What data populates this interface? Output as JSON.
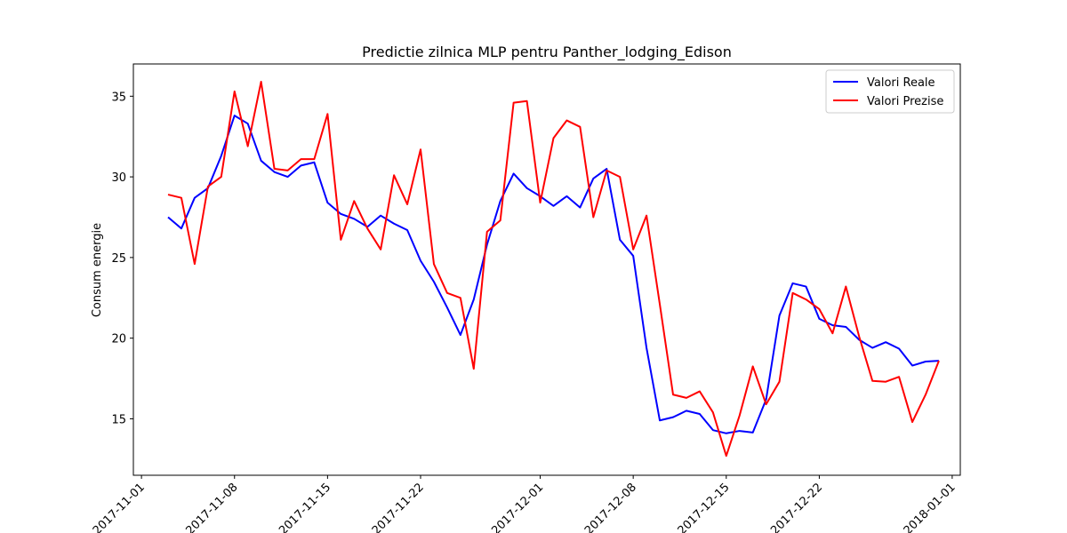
{
  "chart_data": {
    "type": "line",
    "title": "Predictie zilnica MLP pentru Panther_lodging_Edison",
    "xlabel": "",
    "ylabel": "Consum energie",
    "x_start": "2017-11-03",
    "xlim": [
      "2017-11-01",
      "2018-01-01"
    ],
    "ylim": [
      11.5,
      37.0
    ],
    "x_ticks": [
      "2017-11-01",
      "2017-11-08",
      "2017-11-15",
      "2017-11-22",
      "2017-12-01",
      "2017-12-08",
      "2017-12-15",
      "2017-12-22",
      "2018-01-01"
    ],
    "y_ticks": [
      15,
      20,
      25,
      30,
      35
    ],
    "grid": false,
    "legend_position": "top-right",
    "series": [
      {
        "name": "Valori Reale",
        "color": "#0000ff",
        "values": [
          27.5,
          26.8,
          28.7,
          29.3,
          31.3,
          33.8,
          33.3,
          31.0,
          30.3,
          30.0,
          30.7,
          30.9,
          28.4,
          27.7,
          27.4,
          26.9,
          27.6,
          27.1,
          26.7,
          24.8,
          23.5,
          21.9,
          20.2,
          22.4,
          25.8,
          28.5,
          30.2,
          29.3,
          28.8,
          28.2,
          28.8,
          28.1,
          29.9,
          30.5,
          26.1,
          25.1,
          19.4,
          14.9,
          15.1,
          15.5,
          15.3,
          14.3,
          14.1,
          14.25,
          14.15,
          16.2,
          21.4,
          23.4,
          23.2,
          21.2,
          20.8,
          20.7,
          19.9,
          19.4,
          19.75,
          19.35,
          18.3,
          18.55,
          18.6
        ]
      },
      {
        "name": "Valori Prezise",
        "color": "#ff0000",
        "values": [
          28.9,
          28.7,
          24.6,
          29.4,
          30.0,
          35.3,
          31.9,
          35.9,
          30.5,
          30.4,
          31.1,
          31.1,
          33.9,
          26.1,
          28.5,
          26.8,
          25.5,
          30.1,
          28.3,
          31.7,
          24.6,
          22.8,
          22.5,
          18.1,
          26.6,
          27.3,
          34.6,
          34.7,
          28.4,
          32.4,
          33.5,
          33.1,
          27.5,
          30.4,
          30.0,
          25.5,
          27.6,
          22.1,
          16.5,
          16.3,
          16.7,
          15.4,
          12.7,
          15.2,
          18.25,
          15.9,
          17.3,
          22.8,
          22.4,
          21.8,
          20.3,
          23.2,
          20.1,
          17.35,
          17.3,
          17.6,
          14.8,
          16.5,
          18.6
        ]
      }
    ]
  }
}
